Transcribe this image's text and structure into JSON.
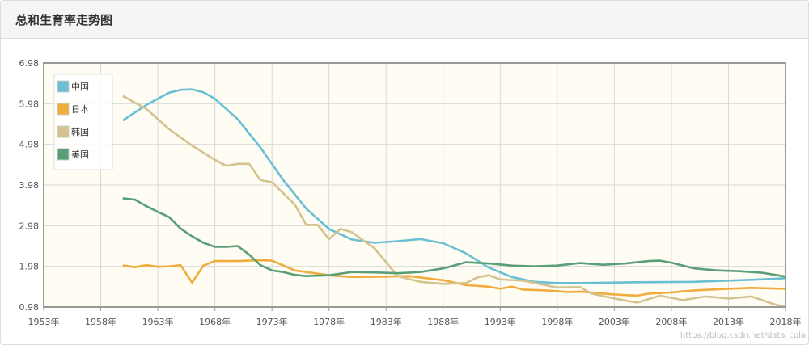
{
  "panel": {
    "title": "总和生育率走势图"
  },
  "watermark": "https://blog.csdn.net/data_cola",
  "colors": {
    "plot_bg": "#fffdf3",
    "grid": "#d8d8d8",
    "frame": "#999999"
  },
  "chart_data": {
    "type": "line",
    "title": "总和生育率走势图",
    "xlabel": "",
    "ylabel": "",
    "xlim": [
      1953,
      2018
    ],
    "ylim": [
      0.98,
      6.98
    ],
    "x_ticks": [
      "1953年",
      "1958年",
      "1963年",
      "1968年",
      "1973年",
      "1978年",
      "1983年",
      "1988年",
      "1993年",
      "1998年",
      "2003年",
      "2008年",
      "2013年",
      "2018年"
    ],
    "y_ticks": [
      "6.98",
      "5.98",
      "4.98",
      "3.98",
      "2.98",
      "1.98",
      "0.98"
    ],
    "grid": true,
    "legend_position": "top-left",
    "series": [
      {
        "name": "中国",
        "color": "#6bbfd4",
        "x": [
          1960,
          1962,
          1964,
          1965,
          1966,
          1967,
          1968,
          1970,
          1972,
          1974,
          1976,
          1978,
          1980,
          1982,
          1984,
          1986,
          1988,
          1990,
          1992,
          1994,
          1996,
          1998,
          2000,
          2005,
          2010,
          2015,
          2018
        ],
        "y": [
          5.58,
          5.95,
          6.25,
          6.32,
          6.33,
          6.26,
          6.1,
          5.6,
          4.9,
          4.1,
          3.4,
          2.9,
          2.64,
          2.56,
          2.6,
          2.65,
          2.55,
          2.3,
          1.95,
          1.72,
          1.6,
          1.57,
          1.57,
          1.59,
          1.6,
          1.65,
          1.69
        ]
      },
      {
        "name": "日本",
        "color": "#f0ac3c",
        "x": [
          1960,
          1961,
          1962,
          1963,
          1964,
          1965,
          1966,
          1967,
          1968,
          1970,
          1972,
          1973,
          1975,
          1978,
          1980,
          1983,
          1985,
          1988,
          1990,
          1992,
          1993,
          1994,
          1995,
          1997,
          1999,
          2000,
          2003,
          2005,
          2006,
          2008,
          2010,
          2013,
          2015,
          2018
        ],
        "y": [
          2.0,
          1.96,
          2.01,
          1.97,
          1.98,
          2.01,
          1.58,
          2.0,
          2.11,
          2.11,
          2.13,
          2.12,
          1.88,
          1.76,
          1.72,
          1.73,
          1.74,
          1.64,
          1.52,
          1.48,
          1.43,
          1.48,
          1.41,
          1.39,
          1.35,
          1.36,
          1.29,
          1.26,
          1.31,
          1.34,
          1.39,
          1.43,
          1.45,
          1.43
        ]
      },
      {
        "name": "韩国",
        "color": "#d4c38e",
        "x": [
          1960,
          1962,
          1964,
          1966,
          1968,
          1969,
          1970,
          1971,
          1972,
          1973,
          1975,
          1976,
          1977,
          1978,
          1979,
          1980,
          1982,
          1984,
          1986,
          1988,
          1990,
          1991,
          1992,
          1993,
          1995,
          1998,
          2000,
          2001,
          2003,
          2005,
          2007,
          2009,
          2011,
          2013,
          2015,
          2017,
          2018
        ],
        "y": [
          6.16,
          5.85,
          5.35,
          4.95,
          4.6,
          4.45,
          4.5,
          4.5,
          4.1,
          4.05,
          3.5,
          3.0,
          3.0,
          2.65,
          2.9,
          2.82,
          2.42,
          1.74,
          1.6,
          1.55,
          1.57,
          1.71,
          1.76,
          1.66,
          1.63,
          1.46,
          1.47,
          1.31,
          1.19,
          1.09,
          1.26,
          1.15,
          1.24,
          1.19,
          1.24,
          1.05,
          0.98
        ]
      },
      {
        "name": "美国",
        "color": "#5a9e78",
        "x": [
          1960,
          1961,
          1962,
          1963,
          1964,
          1965,
          1966,
          1967,
          1968,
          1969,
          1970,
          1971,
          1972,
          1973,
          1974,
          1975,
          1976,
          1978,
          1980,
          1982,
          1984,
          1986,
          1988,
          1990,
          1992,
          1994,
          1996,
          1998,
          2000,
          2002,
          2004,
          2006,
          2007,
          2008,
          2010,
          2012,
          2014,
          2016,
          2018
        ],
        "y": [
          3.65,
          3.62,
          3.46,
          3.32,
          3.19,
          2.91,
          2.72,
          2.56,
          2.46,
          2.46,
          2.48,
          2.27,
          2.01,
          1.88,
          1.84,
          1.77,
          1.74,
          1.76,
          1.84,
          1.83,
          1.81,
          1.84,
          1.93,
          2.08,
          2.05,
          2.0,
          1.98,
          2.0,
          2.06,
          2.02,
          2.05,
          2.11,
          2.12,
          2.07,
          1.93,
          1.88,
          1.86,
          1.82,
          1.73
        ]
      }
    ]
  }
}
